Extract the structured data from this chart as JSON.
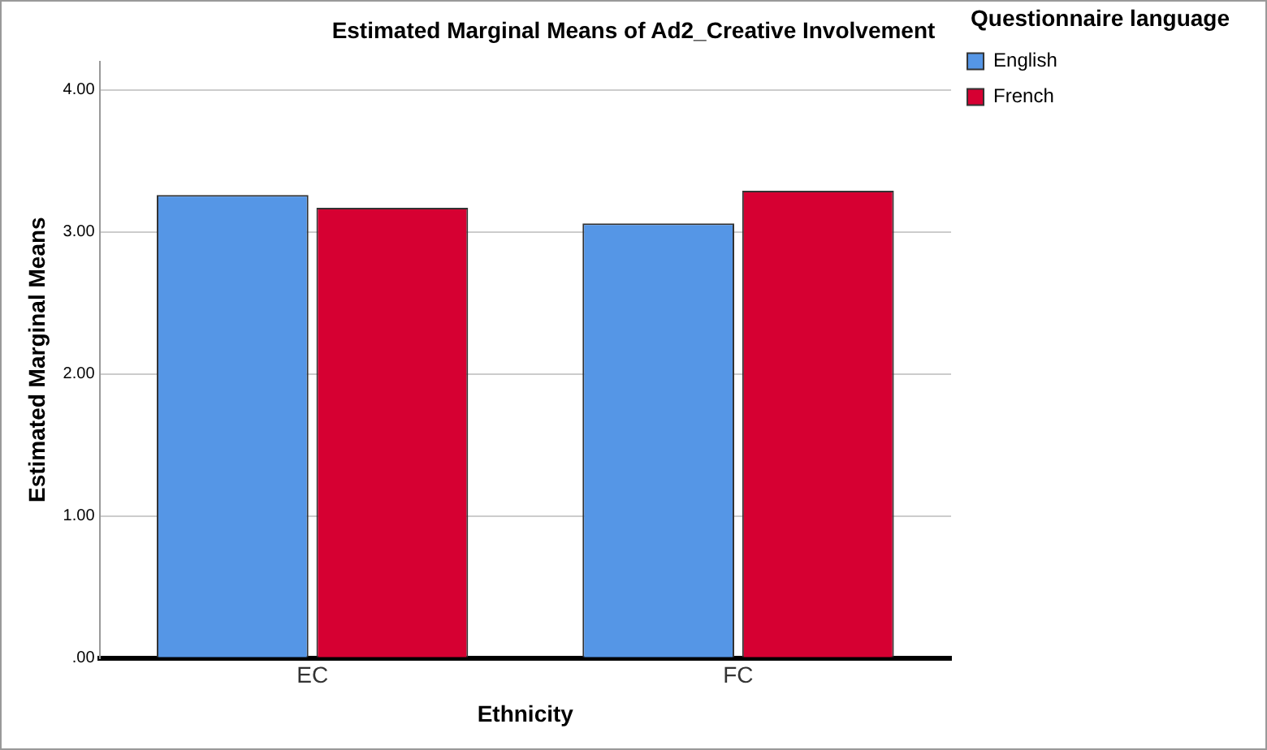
{
  "chart_data": {
    "type": "bar",
    "title": "Estimated Marginal Means of Ad2_Creative Involvement",
    "xlabel": "Ethnicity",
    "ylabel": "Estimated Marginal Means",
    "legend_title": "Questionnaire language",
    "categories": [
      "EC",
      "FC"
    ],
    "series": [
      {
        "name": "English",
        "color": "#5596e6",
        "values": [
          3.26,
          3.06
        ]
      },
      {
        "name": "French",
        "color": "#d60032",
        "values": [
          3.17,
          3.29
        ]
      }
    ],
    "ylim": [
      0,
      4.2
    ],
    "yticks": [
      {
        "value": 0,
        "label": ".00"
      },
      {
        "value": 1,
        "label": "1.00"
      },
      {
        "value": 2,
        "label": "2.00"
      },
      {
        "value": 3,
        "label": "3.00"
      },
      {
        "value": 4,
        "label": "4.00"
      }
    ],
    "grid": "y",
    "legend": "right"
  }
}
